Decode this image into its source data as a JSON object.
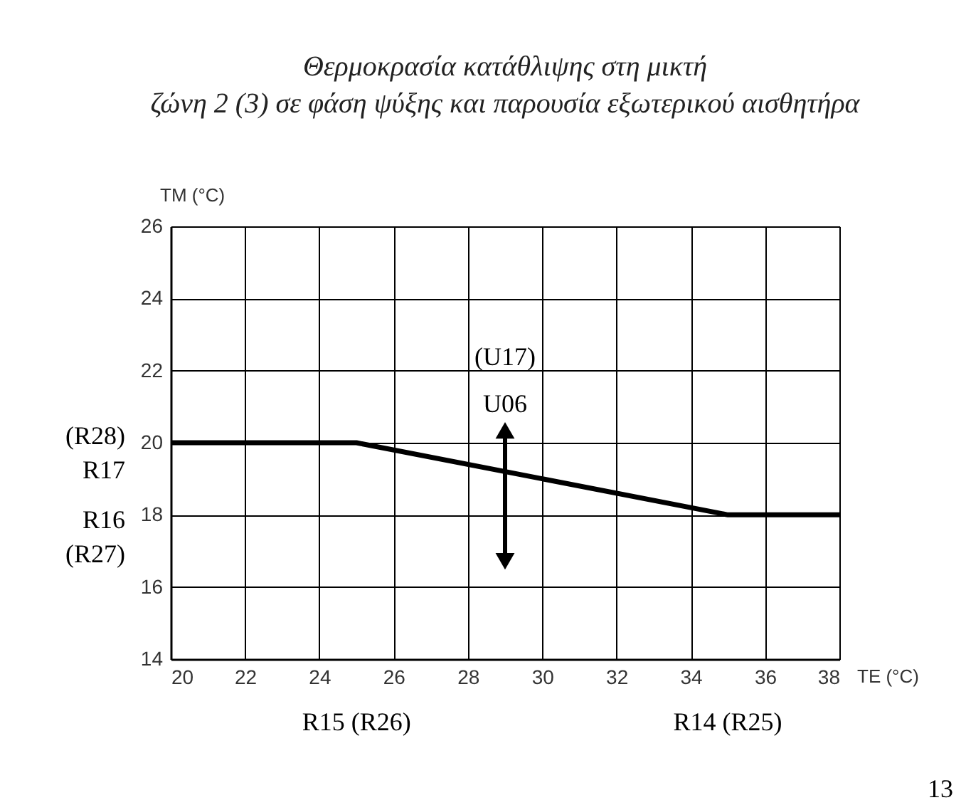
{
  "chart_data": {
    "type": "line",
    "title": [
      "Θερμοκρασία κατάθλιψης στη μικτή",
      "ζώνη 2 (3) σε φάση ψύξης και παρουσία εξωτερικού αισθητήρα"
    ],
    "xlabel": "TE (°C)",
    "ylabel": "TM (°C)",
    "x": [
      20,
      25,
      35,
      38
    ],
    "series": [
      {
        "color": "#000000",
        "values": [
          20,
          20,
          18,
          18
        ]
      }
    ],
    "xlim": [
      20,
      38
    ],
    "xticks": [
      20,
      22,
      24,
      26,
      28,
      30,
      32,
      34,
      36,
      38
    ],
    "ylim": [
      14,
      26
    ],
    "yticks": [
      14,
      16,
      18,
      20,
      22,
      24,
      26
    ],
    "grid": true,
    "marker": "none",
    "line_style": "solid",
    "annotations": [
      {
        "text": "(U17)\nU06",
        "x": 29,
        "y": 19
      },
      "(R28)\nR17",
      "R16\n(R27)",
      "R15 (R26)",
      "R14 (R25)",
      "13"
    ]
  }
}
